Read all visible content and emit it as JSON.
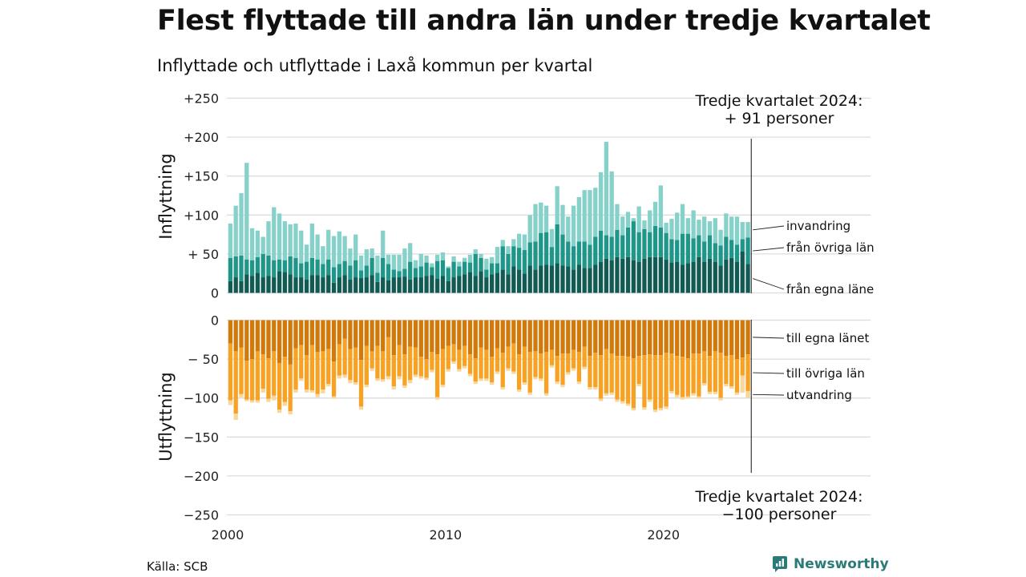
{
  "title": "Flest flyttade till andra län under tredje kvartalet",
  "subtitle": "Inflyttade och utflyttade i Laxå kommun per kvartal",
  "source": "Källa: SCB",
  "brand": "Newsworthy",
  "colors": {
    "in_own": "#125b54",
    "in_other": "#1e9689",
    "in_abroad": "#86d2ca",
    "out_own": "#d2790b",
    "out_other": "#f8a224",
    "out_abroad": "#f8d79c",
    "grid": "#dcdcdc",
    "brand": "#2a7a78"
  },
  "chart_data": [
    {
      "type": "bar",
      "stacked": true,
      "ylabel": "Inflyttning",
      "ylim": [
        0,
        250
      ],
      "yticks": [
        0,
        50,
        100,
        150,
        200,
        250
      ],
      "ytick_labels": [
        "0",
        "+ 50",
        "+100",
        "+150",
        "+200",
        "+250"
      ],
      "xticks": [
        2000,
        2010,
        2020
      ],
      "xlim": [
        2000,
        2029.5
      ],
      "x_quarter_start": 2000,
      "annotation": [
        "Tredje kvartalet 2024:",
        "+ 91 personer"
      ],
      "series": [
        {
          "name": "från egna länet",
          "label": "från egna läne",
          "values": [
            15,
            20,
            15,
            24,
            22,
            26,
            20,
            22,
            20,
            28,
            27,
            24,
            20,
            20,
            17,
            23,
            23,
            20,
            23,
            13,
            20,
            23,
            17,
            20,
            19,
            20,
            23,
            14,
            20,
            16,
            20,
            20,
            21,
            17,
            20,
            20,
            22,
            23,
            18,
            22,
            15,
            20,
            22,
            24,
            27,
            22,
            28,
            20,
            24,
            26,
            30,
            24,
            34,
            30,
            25,
            35,
            30,
            35,
            36,
            35,
            38,
            35,
            34,
            30,
            36,
            32,
            32,
            36,
            40,
            44,
            42,
            46,
            44,
            46,
            42,
            40,
            44,
            46,
            46,
            46,
            43,
            39,
            40,
            36,
            38,
            40,
            46,
            40,
            44,
            40,
            35,
            43,
            45,
            40,
            53,
            37
          ]
        },
        {
          "name": "från övriga län",
          "label": "från övriga län",
          "values": [
            30,
            27,
            33,
            19,
            20,
            20,
            30,
            26,
            22,
            15,
            15,
            23,
            25,
            18,
            23,
            22,
            20,
            17,
            20,
            20,
            17,
            18,
            18,
            22,
            10,
            15,
            22,
            12,
            25,
            21,
            10,
            8,
            10,
            23,
            12,
            14,
            17,
            10,
            23,
            20,
            17,
            20,
            12,
            16,
            12,
            28,
            17,
            10,
            14,
            12,
            30,
            26,
            26,
            28,
            30,
            30,
            36,
            42,
            42,
            24,
            50,
            40,
            32,
            30,
            30,
            34,
            30,
            36,
            40,
            30,
            30,
            35,
            30,
            38,
            50,
            38,
            38,
            32,
            40,
            38,
            34,
            30,
            28,
            40,
            38,
            30,
            28,
            26,
            30,
            24,
            26,
            29,
            23,
            22,
            16,
            34
          ]
        },
        {
          "name": "invandring",
          "label": "invandring",
          "values": [
            44,
            65,
            80,
            124,
            41,
            34,
            22,
            44,
            68,
            59,
            50,
            41,
            44,
            42,
            22,
            44,
            32,
            23,
            38,
            40,
            42,
            32,
            22,
            33,
            19,
            21,
            12,
            22,
            35,
            12,
            19,
            21,
            26,
            24,
            10,
            16,
            9,
            5,
            8,
            10,
            2,
            7,
            6,
            5,
            10,
            6,
            5,
            14,
            8,
            21,
            8,
            10,
            9,
            18,
            20,
            35,
            48,
            39,
            34,
            23,
            49,
            38,
            32,
            52,
            57,
            66,
            70,
            63,
            75,
            120,
            84,
            33,
            24,
            20,
            4,
            33,
            11,
            28,
            31,
            54,
            13,
            26,
            35,
            38,
            20,
            36,
            20,
            32,
            18,
            32,
            20,
            30,
            30,
            36,
            22,
            20
          ]
        }
      ]
    },
    {
      "type": "bar",
      "stacked": true,
      "ylabel": "Utflyttning",
      "ylim": [
        -250,
        0
      ],
      "yticks": [
        0,
        -50,
        -100,
        -150,
        -200,
        -250
      ],
      "ytick_labels": [
        "0",
        "− 50",
        "−100",
        "−150",
        "−200",
        "−250"
      ],
      "xticks": [
        2000,
        2010,
        2020
      ],
      "xticks_labels": [
        "2000",
        "2010",
        "2020"
      ],
      "xlim": [
        2000,
        2029.5
      ],
      "x_quarter_start": 2000,
      "annotation": [
        "Tredje kvartalet 2024:",
        "−100 personer"
      ],
      "series": [
        {
          "name": "till egna länet",
          "label": "till egna länet",
          "values": [
            -30,
            -40,
            -35,
            -52,
            -50,
            -40,
            -44,
            -49,
            -40,
            -55,
            -47,
            -57,
            -36,
            -32,
            -45,
            -32,
            -41,
            -40,
            -37,
            -53,
            -31,
            -24,
            -37,
            -35,
            -51,
            -33,
            -40,
            -33,
            -40,
            -22,
            -45,
            -32,
            -44,
            -34,
            -35,
            -47,
            -50,
            -41,
            -44,
            -37,
            -33,
            -31,
            -38,
            -33,
            -44,
            -49,
            -35,
            -38,
            -47,
            -36,
            -42,
            -34,
            -30,
            -44,
            -34,
            -41,
            -40,
            -43,
            -41,
            -38,
            -46,
            -43,
            -43,
            -38,
            -41,
            -34,
            -46,
            -42,
            -45,
            -37,
            -43,
            -46,
            -46,
            -47,
            -49,
            -46,
            -45,
            -44,
            -45,
            -45,
            -42,
            -43,
            -46,
            -47,
            -49,
            -43,
            -43,
            -40,
            -46,
            -40,
            -42,
            -46,
            -45,
            -50,
            -48,
            -44
          ]
        },
        {
          "name": "till övriga län",
          "label": "till övriga län",
          "values": [
            -73,
            -80,
            -60,
            -50,
            -53,
            -63,
            -44,
            -52,
            -57,
            -60,
            -58,
            -60,
            -53,
            -43,
            -44,
            -58,
            -54,
            -49,
            -45,
            -45,
            -40,
            -46,
            -40,
            -45,
            -60,
            -50,
            -22,
            -42,
            -36,
            -50,
            -40,
            -40,
            -40,
            -43,
            -35,
            -25,
            -24,
            -23,
            -55,
            -46,
            -30,
            -22,
            -25,
            -26,
            -25,
            -30,
            -40,
            -37,
            -33,
            -30,
            -44,
            -28,
            -36,
            -45,
            -46,
            -52,
            -33,
            -32,
            -53,
            -20,
            -33,
            -40,
            -24,
            -24,
            -38,
            -26,
            -40,
            -44,
            -56,
            -57,
            -50,
            -56,
            -58,
            -60,
            -64,
            -36,
            -67,
            -58,
            -70,
            -68,
            -69,
            -48,
            -50,
            -52,
            -49,
            -51,
            -55,
            -41,
            -46,
            -52,
            -58,
            -36,
            -40,
            -43,
            -23,
            -47
          ]
        },
        {
          "name": "utvandring",
          "label": "utvandring",
          "values": [
            -6,
            -8,
            -4,
            -2,
            -3,
            -3,
            -5,
            -4,
            -6,
            -4,
            -5,
            -4,
            -4,
            -3,
            -4,
            -3,
            -4,
            -5,
            -3,
            -3,
            -4,
            -4,
            -4,
            -3,
            -4,
            -3,
            -3,
            -3,
            -3,
            -4,
            -4,
            -4,
            -3,
            -4,
            -3,
            -3,
            -3,
            -3,
            -3,
            -3,
            -3,
            -3,
            -3,
            -3,
            -3,
            -3,
            -3,
            -3,
            -3,
            -3,
            -3,
            -3,
            -3,
            -3,
            -3,
            -3,
            -3,
            -3,
            -3,
            -3,
            -3,
            -3,
            -3,
            -3,
            -3,
            -3,
            -3,
            -3,
            -3,
            -3,
            -3,
            -3,
            -3,
            -3,
            -3,
            -3,
            -3,
            -3,
            -3,
            -3,
            -3,
            -3,
            -3,
            -3,
            -3,
            -3,
            -3,
            -3,
            -3,
            -3,
            -3,
            -3,
            -3,
            -3,
            -22,
            -9
          ]
        }
      ]
    }
  ]
}
